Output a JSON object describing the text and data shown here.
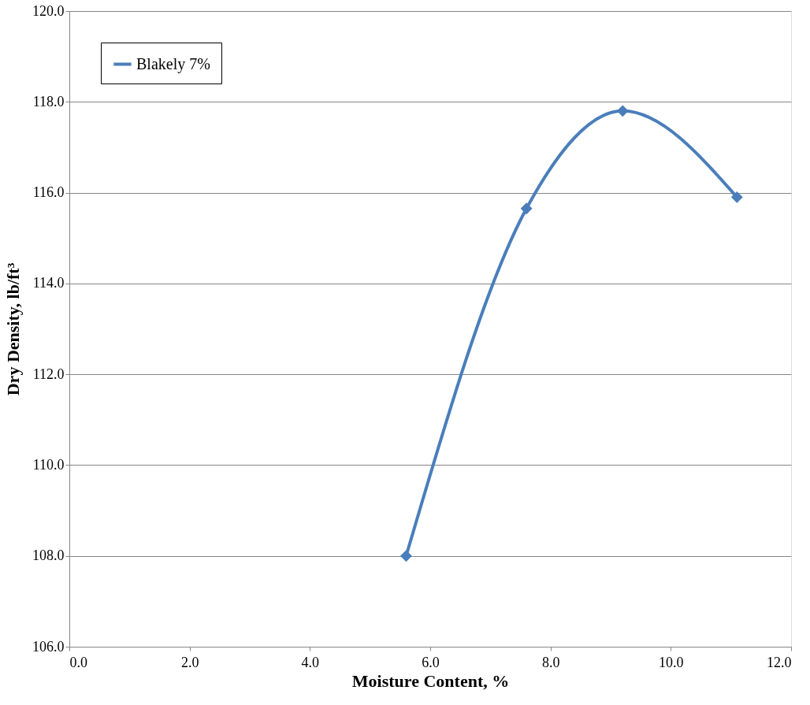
{
  "chart_data": {
    "type": "line",
    "xlabel": "Moisture Content, %",
    "ylabel": "Dry Density, lb/ft³",
    "x": [
      5.6,
      7.6,
      9.2,
      11.1
    ],
    "series": [
      {
        "name": "Blakely 7%",
        "color": "#4a7ebb",
        "values": [
          108.0,
          115.65,
          117.8,
          115.9
        ]
      }
    ],
    "xlim": [
      0,
      12
    ],
    "xticks": [
      {
        "value": 0,
        "label": "0.0"
      },
      {
        "value": 2,
        "label": "2.0"
      },
      {
        "value": 4,
        "label": "4.0"
      },
      {
        "value": 6,
        "label": "6.0"
      },
      {
        "value": 8,
        "label": "8.0"
      },
      {
        "value": 10,
        "label": "10.0"
      },
      {
        "value": 12,
        "label": "12.0"
      }
    ],
    "ylim": [
      106,
      120
    ],
    "yticks": [
      {
        "value": 106,
        "label": "106.0"
      },
      {
        "value": 108,
        "label": "108.0"
      },
      {
        "value": 110,
        "label": "110.0"
      },
      {
        "value": 112,
        "label": "112.0"
      },
      {
        "value": 114,
        "label": "114.0"
      },
      {
        "value": 116,
        "label": "116.0"
      },
      {
        "value": 118,
        "label": "118.0"
      },
      {
        "value": 120,
        "label": "120.0"
      }
    ],
    "grid": "y",
    "legend": "top left",
    "marker": "diamond",
    "line_style": "solid"
  }
}
